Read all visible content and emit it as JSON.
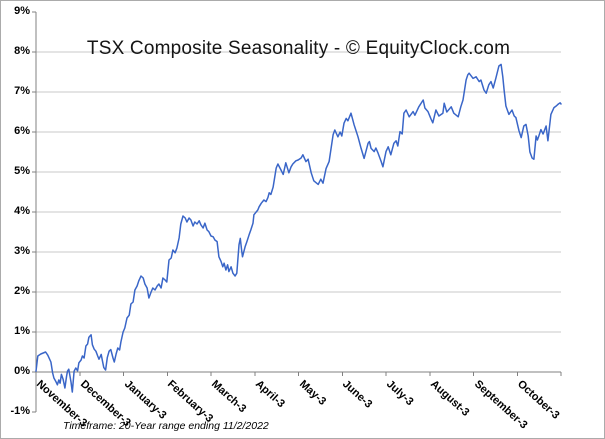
{
  "chart_data": {
    "type": "line",
    "title": "TSX Composite Seasonality - © EquityClock.com",
    "footnote": "Timeframe: 20-Year range ending 11/2/2022",
    "x_categories": [
      "November-3",
      "December-3",
      "January-3",
      "February-3",
      "March-3",
      "April-3",
      "May-3",
      "June-3",
      "July-3",
      "August-3",
      "September-3",
      "October-3"
    ],
    "y_tick_labels": [
      "9%",
      "8%",
      "7%",
      "6%",
      "5%",
      "4%",
      "3%",
      "2%",
      "1%",
      "0%",
      "-1%"
    ],
    "y_ticks": [
      9,
      8,
      7,
      6,
      5,
      4,
      3,
      2,
      1,
      0,
      -1
    ],
    "ylim": [
      -1,
      9
    ],
    "y_unit": "%",
    "grid": "horizontal, 1% steps from 1% to 8%, category axis drawn at 0%",
    "legend": "none",
    "colors": {
      "line": "#3A66C8",
      "gridline": "#c8c8c8",
      "axis": "#808080",
      "text": "#000000",
      "background": "#ffffff",
      "frame": "#ababab"
    },
    "series": [
      {
        "name": "seasonality",
        "x_unit": "month-position (0 = Nov start, 12 = Oct end)",
        "points": [
          [
            0,
            0.02
          ],
          [
            0.04,
            0.4
          ],
          [
            0.11,
            0.45
          ],
          [
            0.22,
            0.5
          ],
          [
            0.27,
            0.42
          ],
          [
            0.34,
            0.25
          ],
          [
            0.38,
            -0.02
          ],
          [
            0.41,
            -0.15
          ],
          [
            0.46,
            -0.25
          ],
          [
            0.49,
            -0.32
          ],
          [
            0.52,
            -0.2
          ],
          [
            0.55,
            -0.28
          ],
          [
            0.58,
            -0.06
          ],
          [
            0.62,
            -0.18
          ],
          [
            0.66,
            -0.4
          ],
          [
            0.7,
            -0.1
          ],
          [
            0.72,
            0.02
          ],
          [
            0.75,
            0.07
          ],
          [
            0.8,
            -0.25
          ],
          [
            0.83,
            -0.5
          ],
          [
            0.87,
            0.02
          ],
          [
            0.91,
            0.1
          ],
          [
            0.95,
            0.03
          ],
          [
            0.98,
            0.23
          ],
          [
            1.03,
            0.3
          ],
          [
            1.06,
            0.4
          ],
          [
            1.1,
            0.35
          ],
          [
            1.14,
            0.65
          ],
          [
            1.18,
            0.7
          ],
          [
            1.21,
            0.87
          ],
          [
            1.26,
            0.93
          ],
          [
            1.29,
            0.68
          ],
          [
            1.33,
            0.57
          ],
          [
            1.37,
            0.52
          ],
          [
            1.41,
            0.4
          ],
          [
            1.44,
            0.32
          ],
          [
            1.49,
            0.44
          ],
          [
            1.52,
            0.27
          ],
          [
            1.55,
            0.11
          ],
          [
            1.59,
            0.05
          ],
          [
            1.63,
            0.36
          ],
          [
            1.67,
            0.52
          ],
          [
            1.71,
            0.56
          ],
          [
            1.76,
            0.35
          ],
          [
            1.79,
            0.25
          ],
          [
            1.83,
            0.45
          ],
          [
            1.87,
            0.6
          ],
          [
            1.91,
            0.55
          ],
          [
            1.94,
            0.75
          ],
          [
            1.99,
            1
          ],
          [
            2.03,
            1.1
          ],
          [
            2.08,
            1.35
          ],
          [
            2.13,
            1.42
          ],
          [
            2.17,
            1.7
          ],
          [
            2.22,
            1.75
          ],
          [
            2.26,
            2.05
          ],
          [
            2.31,
            2.15
          ],
          [
            2.35,
            2.28
          ],
          [
            2.4,
            2.4
          ],
          [
            2.45,
            2.35
          ],
          [
            2.49,
            2.2
          ],
          [
            2.54,
            2.1
          ],
          [
            2.58,
            1.85
          ],
          [
            2.63,
            2
          ],
          [
            2.67,
            2.1
          ],
          [
            2.72,
            2.05
          ],
          [
            2.77,
            2.15
          ],
          [
            2.81,
            2.2
          ],
          [
            2.86,
            2.1
          ],
          [
            2.9,
            2.35
          ],
          [
            2.95,
            2.3
          ],
          [
            2.99,
            2.25
          ],
          [
            3.04,
            2.8
          ],
          [
            3.09,
            2.85
          ],
          [
            3.13,
            3.05
          ],
          [
            3.18,
            2.98
          ],
          [
            3.22,
            3.1
          ],
          [
            3.27,
            3.35
          ],
          [
            3.31,
            3.7
          ],
          [
            3.36,
            3.9
          ],
          [
            3.41,
            3.85
          ],
          [
            3.45,
            3.75
          ],
          [
            3.5,
            3.85
          ],
          [
            3.54,
            3.8
          ],
          [
            3.59,
            3.65
          ],
          [
            3.63,
            3.75
          ],
          [
            3.68,
            3.7
          ],
          [
            3.73,
            3.78
          ],
          [
            3.77,
            3.68
          ],
          [
            3.82,
            3.6
          ],
          [
            3.86,
            3.72
          ],
          [
            3.91,
            3.55
          ],
          [
            3.95,
            3.51
          ],
          [
            4,
            3.4
          ],
          [
            4.05,
            3.38
          ],
          [
            4.09,
            3.3
          ],
          [
            4.14,
            3.26
          ],
          [
            4.18,
            2.88
          ],
          [
            4.23,
            2.76
          ],
          [
            4.27,
            2.63
          ],
          [
            4.3,
            2.72
          ],
          [
            4.34,
            2.55
          ],
          [
            4.38,
            2.68
          ],
          [
            4.41,
            2.51
          ],
          [
            4.46,
            2.63
          ],
          [
            4.5,
            2.47
          ],
          [
            4.55,
            2.4
          ],
          [
            4.59,
            2.47
          ],
          [
            4.64,
            3.18
          ],
          [
            4.67,
            3.34
          ],
          [
            4.7,
            3.05
          ],
          [
            4.72,
            2.88
          ],
          [
            4.78,
            3.13
          ],
          [
            4.82,
            3.26
          ],
          [
            4.87,
            3.43
          ],
          [
            4.91,
            3.55
          ],
          [
            4.96,
            3.72
          ],
          [
            4.98,
            3.93
          ],
          [
            5.07,
            4.05
          ],
          [
            5.1,
            4.13
          ],
          [
            5.15,
            4.22
          ],
          [
            5.21,
            4.3
          ],
          [
            5.26,
            4.26
          ],
          [
            5.3,
            4.36
          ],
          [
            5.33,
            4.48
          ],
          [
            5.37,
            4.44
          ],
          [
            5.42,
            4.62
          ],
          [
            5.49,
            5.1
          ],
          [
            5.53,
            5.2
          ],
          [
            5.6,
            5.05
          ],
          [
            5.65,
            4.94
          ],
          [
            5.71,
            5.23
          ],
          [
            5.78,
            4.98
          ],
          [
            5.83,
            5.13
          ],
          [
            5.87,
            5.2
          ],
          [
            5.94,
            5.28
          ],
          [
            5.99,
            5.3
          ],
          [
            6.06,
            5.35
          ],
          [
            6.1,
            5.43
          ],
          [
            6.17,
            5.26
          ],
          [
            6.22,
            5.32
          ],
          [
            6.29,
            4.98
          ],
          [
            6.35,
            4.78
          ],
          [
            6.45,
            4.69
          ],
          [
            6.51,
            4.82
          ],
          [
            6.56,
            4.72
          ],
          [
            6.63,
            5.09
          ],
          [
            6.7,
            5.26
          ],
          [
            6.79,
            5.93
          ],
          [
            6.83,
            6.05
          ],
          [
            6.9,
            5.88
          ],
          [
            6.95,
            6
          ],
          [
            6.99,
            5.9
          ],
          [
            7.04,
            6.22
          ],
          [
            7.09,
            6.34
          ],
          [
            7.13,
            6.28
          ],
          [
            7.2,
            6.47
          ],
          [
            7.27,
            6.18
          ],
          [
            7.36,
            5.88
          ],
          [
            7.43,
            5.59
          ],
          [
            7.5,
            5.34
          ],
          [
            7.59,
            5.72
          ],
          [
            7.62,
            5.76
          ],
          [
            7.66,
            5.59
          ],
          [
            7.73,
            5.51
          ],
          [
            7.77,
            5.6
          ],
          [
            7.82,
            5.47
          ],
          [
            7.89,
            5.26
          ],
          [
            7.93,
            5.13
          ],
          [
            8,
            5.51
          ],
          [
            8.05,
            5.63
          ],
          [
            8.09,
            5.5
          ],
          [
            8.11,
            5.43
          ],
          [
            8.18,
            5.72
          ],
          [
            8.23,
            5.78
          ],
          [
            8.27,
            5.65
          ],
          [
            8.32,
            6.01
          ],
          [
            8.37,
            5.95
          ],
          [
            8.41,
            6.47
          ],
          [
            8.46,
            6.55
          ],
          [
            8.53,
            6.38
          ],
          [
            8.62,
            6.51
          ],
          [
            8.66,
            6.42
          ],
          [
            8.75,
            6.63
          ],
          [
            8.85,
            6.8
          ],
          [
            8.89,
            6.6
          ],
          [
            8.96,
            6.51
          ],
          [
            9.03,
            6.32
          ],
          [
            9.07,
            6.23
          ],
          [
            9.14,
            6.55
          ],
          [
            9.21,
            6.4
          ],
          [
            9.3,
            6.47
          ],
          [
            9.33,
            6.72
          ],
          [
            9.39,
            6.5
          ],
          [
            9.49,
            6.63
          ],
          [
            9.55,
            6.47
          ],
          [
            9.65,
            6.38
          ],
          [
            9.71,
            6.63
          ],
          [
            9.76,
            6.8
          ],
          [
            9.83,
            7.3
          ],
          [
            9.87,
            7.43
          ],
          [
            9.9,
            7.47
          ],
          [
            9.99,
            7.34
          ],
          [
            10.06,
            7.38
          ],
          [
            10.13,
            7.26
          ],
          [
            10.17,
            7.3
          ],
          [
            10.24,
            7.05
          ],
          [
            10.29,
            6.97
          ],
          [
            10.35,
            7.18
          ],
          [
            10.4,
            7.26
          ],
          [
            10.45,
            7.1
          ],
          [
            10.51,
            7.34
          ],
          [
            10.58,
            7.65
          ],
          [
            10.63,
            7.69
          ],
          [
            10.67,
            7.38
          ],
          [
            10.7,
            7.05
          ],
          [
            10.74,
            6.65
          ],
          [
            10.81,
            6.44
          ],
          [
            10.88,
            6.55
          ],
          [
            10.93,
            6.4
          ],
          [
            10.97,
            6.36
          ],
          [
            11.04,
            6.03
          ],
          [
            11.09,
            5.86
          ],
          [
            11.15,
            6.15
          ],
          [
            11.2,
            6.19
          ],
          [
            11.25,
            5.9
          ],
          [
            11.29,
            5.5
          ],
          [
            11.34,
            5.35
          ],
          [
            11.38,
            5.32
          ],
          [
            11.43,
            5.9
          ],
          [
            11.46,
            5.8
          ],
          [
            11.5,
            5.92
          ],
          [
            11.54,
            6.06
          ],
          [
            11.59,
            5.95
          ],
          [
            11.66,
            6.15
          ],
          [
            11.7,
            5.78
          ],
          [
            11.77,
            6.44
          ],
          [
            11.84,
            6.61
          ],
          [
            11.89,
            6.65
          ],
          [
            11.93,
            6.69
          ],
          [
            11.98,
            6.73
          ],
          [
            12,
            6.7
          ]
        ]
      }
    ]
  }
}
